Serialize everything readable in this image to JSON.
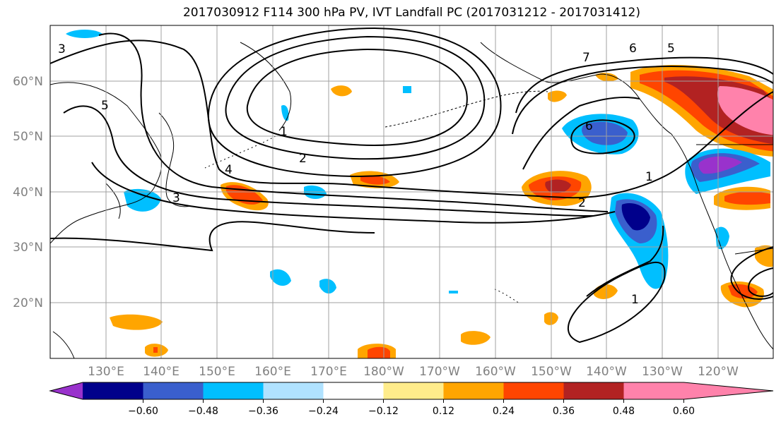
{
  "title": "2017030912 F114 300 hPa PV, IVT Landfall PC (2017031212 - 2017031412)",
  "lat_labels": [
    "60°N",
    "50°N",
    "40°N",
    "30°N",
    "20°N"
  ],
  "lon_labels": [
    "130°E",
    "140°E",
    "150°E",
    "160°E",
    "170°E",
    "180°W",
    "170°W",
    "160°W",
    "150°W",
    "140°W",
    "130°W",
    "120°W"
  ],
  "colorbar": {
    "ticks": [
      "−0.60",
      "−0.48",
      "−0.36",
      "−0.24",
      "−0.12",
      "0.12",
      "0.24",
      "0.36",
      "0.48",
      "0.60"
    ],
    "colors": [
      "#9932cc",
      "#00008b",
      "#3a5fcd",
      "#00bfff",
      "#b0e2ff",
      "#ffffff",
      "#ffec8b",
      "#ffa500",
      "#ff4500",
      "#b22222",
      "#ff82ab"
    ]
  },
  "contour_labels": [
    "3",
    "5",
    "3",
    "4",
    "1",
    "2",
    "7",
    "6",
    "5",
    "6",
    "2",
    "1",
    "1"
  ],
  "colors": {
    "background": "#ffffff",
    "grid": "#a0a0a0",
    "contour": "#000000"
  }
}
